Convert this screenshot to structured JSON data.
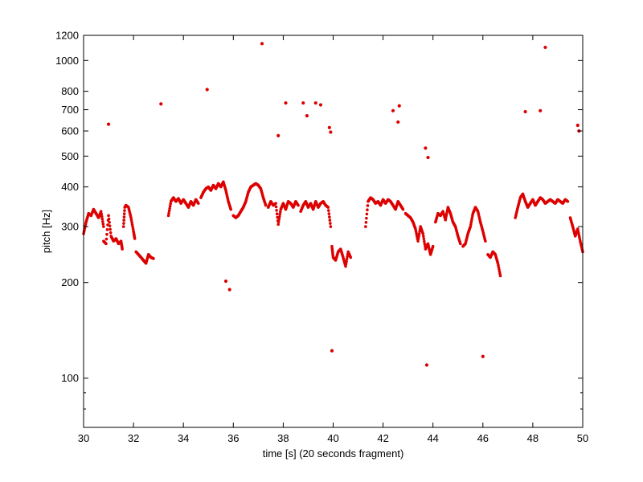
{
  "chart_data": {
    "type": "scatter",
    "xlabel": "time [s] (20 seconds fragment)",
    "ylabel": "pitch [Hz]",
    "xlim": [
      30,
      50
    ],
    "ylim": [
      70,
      1200
    ],
    "yscale": "log",
    "grid": false,
    "x_ticks": [
      30,
      32,
      34,
      36,
      38,
      40,
      42,
      44,
      46,
      48,
      50
    ],
    "y_ticks": [
      100,
      200,
      300,
      400,
      500,
      600,
      700,
      800,
      1000,
      1200
    ],
    "y_minor_ticks": [
      70,
      80,
      90
    ],
    "marker_color": "#dd0000",
    "segments": [
      {
        "x": [
          30.0,
          30.1,
          30.2,
          30.3,
          30.4,
          30.5,
          30.6,
          30.7,
          30.8
        ],
        "y": [
          285,
          310,
          330,
          325,
          340,
          330,
          320,
          335,
          300
        ]
      },
      {
        "x": [
          30.8,
          30.9,
          31.0,
          31.1,
          31.2,
          31.3,
          31.4,
          31.5,
          31.55
        ],
        "y": [
          270,
          265,
          325,
          280,
          270,
          275,
          265,
          270,
          255
        ]
      },
      {
        "x": [
          31.6,
          31.65,
          31.7,
          31.8,
          31.9,
          32.0,
          32.05
        ],
        "y": [
          300,
          345,
          350,
          345,
          320,
          290,
          275
        ]
      },
      {
        "x": [
          32.1,
          32.2,
          32.3,
          32.4,
          32.5,
          32.6,
          32.7,
          32.8
        ],
        "y": [
          250,
          245,
          240,
          235,
          230,
          245,
          240,
          238
        ]
      },
      {
        "x": [
          33.4,
          33.5,
          33.6,
          33.7,
          33.8,
          33.9,
          34.0,
          34.1,
          34.2,
          34.3,
          34.4,
          34.5,
          34.6
        ],
        "y": [
          325,
          360,
          370,
          360,
          368,
          355,
          365,
          355,
          345,
          360,
          350,
          365,
          355
        ]
      },
      {
        "x": [
          34.7,
          34.8,
          34.9,
          35.0,
          35.1,
          35.2,
          35.3,
          35.4,
          35.5,
          35.6,
          35.7,
          35.8,
          35.9
        ],
        "y": [
          370,
          385,
          395,
          400,
          390,
          405,
          395,
          410,
          400,
          415,
          390,
          360,
          340
        ]
      },
      {
        "x": [
          36.0,
          36.1,
          36.2,
          36.3,
          36.4,
          36.5,
          36.6,
          36.7,
          36.8,
          36.9,
          37.0,
          37.1,
          37.2,
          37.3
        ],
        "y": [
          325,
          320,
          325,
          335,
          345,
          360,
          385,
          400,
          405,
          410,
          405,
          395,
          370,
          350
        ]
      },
      {
        "x": [
          37.4,
          37.5,
          37.6,
          37.7,
          37.8,
          37.9,
          38.0,
          38.1,
          38.2,
          38.3,
          38.4,
          38.5,
          38.6
        ],
        "y": [
          345,
          360,
          350,
          355,
          305,
          340,
          355,
          340,
          360,
          355,
          345,
          360,
          350
        ]
      },
      {
        "x": [
          38.7,
          38.8,
          38.9,
          39.0,
          39.1,
          39.2,
          39.3,
          39.4,
          39.5,
          39.6,
          39.7,
          39.8,
          39.9
        ],
        "y": [
          335,
          350,
          360,
          345,
          355,
          340,
          360,
          345,
          355,
          360,
          350,
          345,
          300
        ]
      },
      {
        "x": [
          39.95,
          40.0,
          40.1,
          40.2,
          40.3,
          40.4,
          40.5,
          40.6,
          40.7
        ],
        "y": [
          260,
          240,
          235,
          250,
          255,
          240,
          225,
          250,
          240
        ]
      },
      {
        "x": [
          41.3,
          41.4,
          41.5,
          41.6,
          41.7,
          41.8,
          41.9,
          42.0,
          42.1,
          42.2,
          42.3,
          42.4,
          42.5,
          42.6,
          42.7,
          42.8
        ],
        "y": [
          300,
          360,
          370,
          365,
          355,
          360,
          350,
          365,
          355,
          365,
          360,
          350,
          340,
          360,
          350,
          340
        ]
      },
      {
        "x": [
          42.9,
          43.0,
          43.1,
          43.2,
          43.3,
          43.4,
          43.5,
          43.6,
          43.7,
          43.8,
          43.9,
          44.0
        ],
        "y": [
          330,
          325,
          320,
          310,
          295,
          270,
          300,
          285,
          255,
          265,
          245,
          260
        ]
      },
      {
        "x": [
          44.1,
          44.2,
          44.3,
          44.4,
          44.5,
          44.6,
          44.7,
          44.8,
          44.9,
          45.0,
          45.1
        ],
        "y": [
          310,
          330,
          325,
          335,
          315,
          345,
          330,
          310,
          300,
          280,
          265
        ]
      },
      {
        "x": [
          45.2,
          45.3,
          45.4,
          45.5,
          45.6,
          45.7,
          45.8,
          45.9,
          46.0,
          46.1
        ],
        "y": [
          260,
          265,
          285,
          300,
          330,
          345,
          335,
          310,
          290,
          270
        ]
      },
      {
        "x": [
          46.2,
          46.3,
          46.4,
          46.5,
          46.6,
          46.7
        ],
        "y": [
          245,
          240,
          250,
          245,
          230,
          210
        ]
      },
      {
        "x": [
          47.3,
          47.4,
          47.5,
          47.6,
          47.7,
          47.8,
          47.9,
          48.0,
          48.1,
          48.2,
          48.3,
          48.4,
          48.5,
          48.6,
          48.7,
          48.8,
          48.9,
          49.0,
          49.1,
          49.2,
          49.3,
          49.4
        ],
        "y": [
          320,
          345,
          370,
          380,
          360,
          345,
          355,
          365,
          350,
          360,
          370,
          365,
          355,
          360,
          365,
          360,
          355,
          365,
          360,
          355,
          365,
          360
        ]
      },
      {
        "x": [
          49.5,
          49.6,
          49.7,
          49.8,
          49.9,
          50.0
        ],
        "y": [
          320,
          300,
          280,
          295,
          270,
          250
        ]
      }
    ],
    "outliers": {
      "x": [
        31.0,
        33.1,
        34.95,
        35.7,
        35.85,
        37.15,
        37.8,
        38.1,
        38.8,
        38.95,
        39.3,
        39.5,
        39.85,
        39.9,
        39.95,
        42.4,
        42.6,
        42.65,
        43.7,
        43.8,
        43.75,
        46.0,
        47.7,
        48.3,
        48.5,
        49.8,
        49.85
      ],
      "y": [
        630,
        730,
        810,
        202,
        190,
        1130,
        580,
        735,
        735,
        670,
        735,
        725,
        615,
        595,
        122,
        695,
        640,
        720,
        530,
        495,
        110,
        117,
        690,
        695,
        1100,
        625,
        600
      ]
    }
  }
}
